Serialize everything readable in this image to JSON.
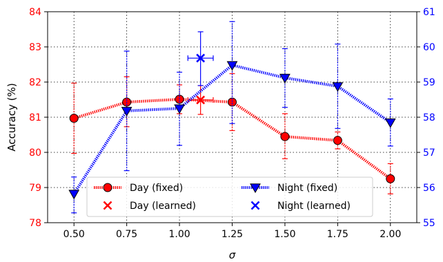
{
  "chart_data": {
    "type": "line",
    "xlabel": "σ",
    "ylabel_left": "Accuracy (%)",
    "ylabel_right": "",
    "xlim": [
      0.375,
      2.125
    ],
    "ylim_left": [
      78,
      84
    ],
    "ylim_right": [
      55,
      61
    ],
    "x_ticks": [
      0.5,
      0.75,
      1.0,
      1.25,
      1.5,
      1.75,
      2.0
    ],
    "x_tick_labels": [
      "0.50",
      "0.75",
      "1.00",
      "1.25",
      "1.50",
      "1.75",
      "2.00"
    ],
    "y_left_ticks": [
      78,
      79,
      80,
      81,
      82,
      83,
      84
    ],
    "y_left_tick_labels": [
      "78",
      "79",
      "80",
      "81",
      "82",
      "83",
      "84"
    ],
    "y_right_ticks": [
      55,
      56,
      57,
      58,
      59,
      60,
      61
    ],
    "y_right_tick_labels": [
      "55",
      "56",
      "57",
      "58",
      "59",
      "60",
      "61"
    ],
    "grid": true,
    "legend_position": "bottom-center",
    "left_axis_color": "#ff0000",
    "right_axis_color": "#0000ff",
    "series": [
      {
        "name": "Day (fixed)",
        "axis": "left",
        "color": "#ff0000",
        "marker": "circle",
        "line": "dotted",
        "x": [
          0.5,
          0.75,
          1.0,
          1.25,
          1.5,
          1.75,
          2.0
        ],
        "y": [
          80.97,
          81.43,
          81.51,
          81.43,
          80.45,
          80.34,
          79.25
        ],
        "err_low": [
          79.97,
          80.73,
          81.1,
          80.62,
          79.82,
          80.1,
          78.82
        ],
        "err_high": [
          81.97,
          82.15,
          81.92,
          82.24,
          81.1,
          80.58,
          79.68
        ]
      },
      {
        "name": "Day (learned)",
        "axis": "left",
        "color": "#ff0000",
        "marker": "x",
        "x": [
          1.1
        ],
        "y": [
          81.49
        ],
        "err_low": [
          81.08
        ],
        "err_high": [
          81.9
        ],
        "xerr": [
          0.06
        ]
      },
      {
        "name": "Night (fixed)",
        "axis": "right",
        "color": "#0000ff",
        "marker": "triangle-down",
        "line": "dotted",
        "x": [
          0.5,
          0.75,
          1.0,
          1.25,
          1.5,
          1.75,
          2.0
        ],
        "y": [
          55.82,
          58.18,
          58.25,
          59.48,
          59.12,
          58.88,
          57.85
        ],
        "err_low": [
          55.28,
          56.48,
          57.2,
          57.82,
          58.28,
          57.68,
          57.18
        ],
        "err_high": [
          56.3,
          59.88,
          59.28,
          60.72,
          59.95,
          60.08,
          58.52
        ]
      },
      {
        "name": "Night (learned)",
        "axis": "right",
        "color": "#0000ff",
        "marker": "x",
        "x": [
          1.1
        ],
        "y": [
          59.68
        ],
        "err_low": [
          58.9
        ],
        "err_high": [
          60.43
        ],
        "xerr": [
          0.06
        ]
      }
    ]
  }
}
